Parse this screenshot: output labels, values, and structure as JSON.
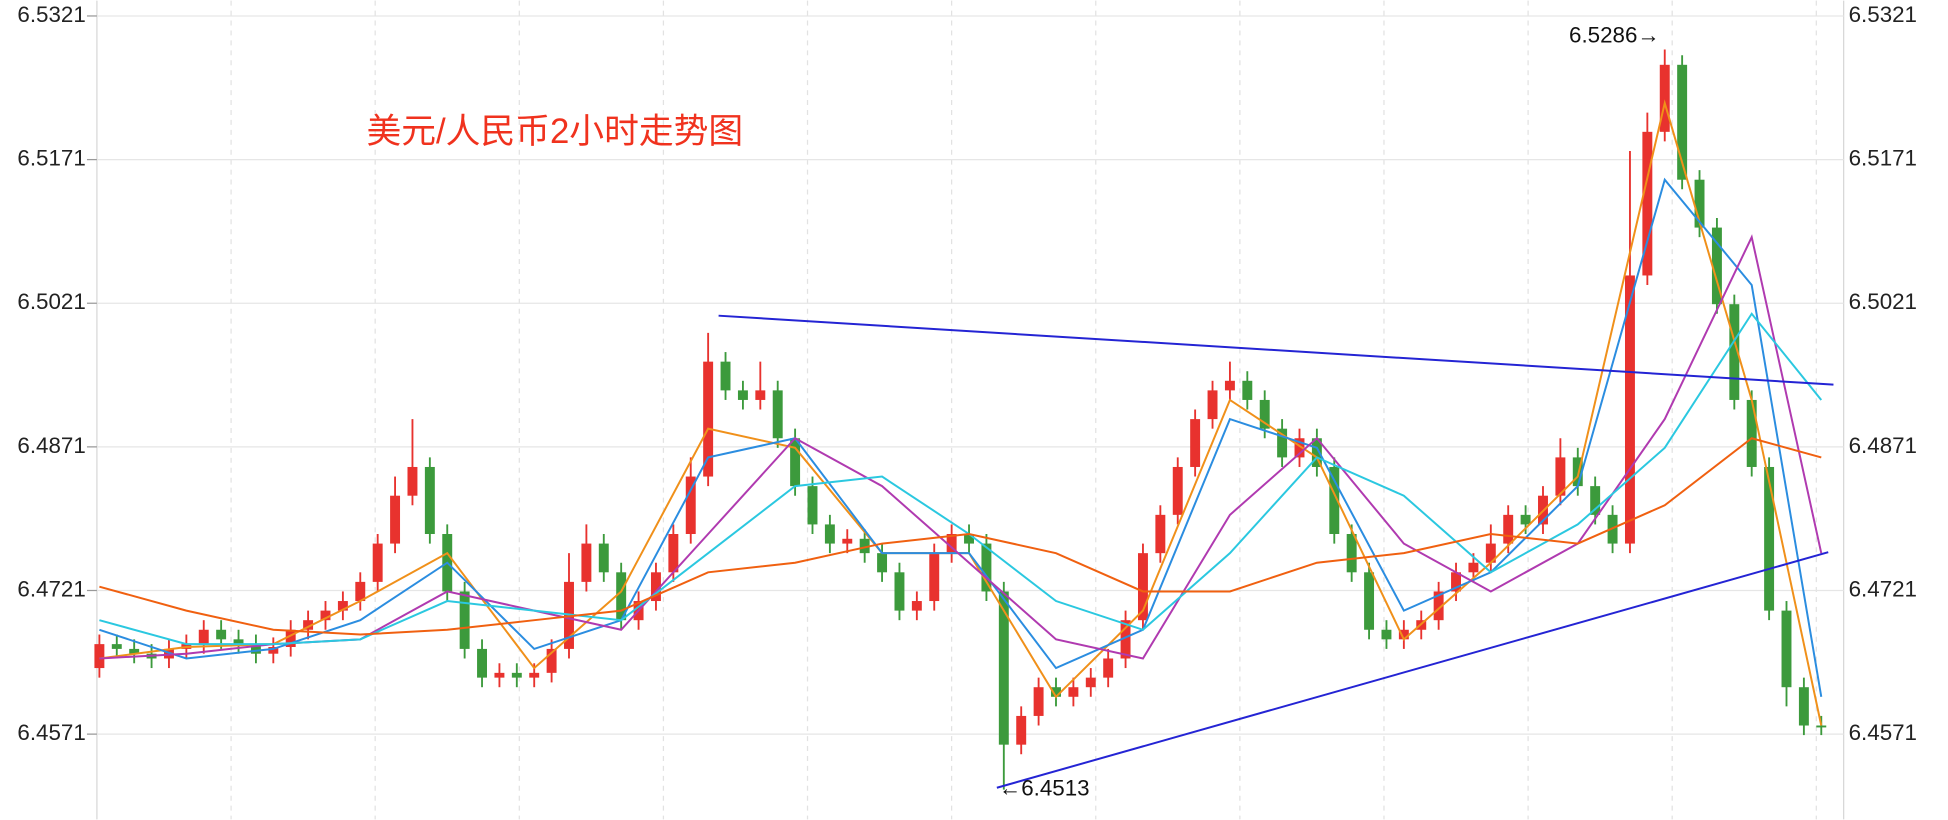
{
  "chart_data": {
    "type": "candlestick",
    "title": "美元/人民币2小时走势图",
    "annotations": [
      "6.5286→",
      "←6.4513"
    ],
    "ylim": [
      6.4482,
      6.5337
    ],
    "yticks": [
      6.4571,
      6.4721,
      6.4871,
      6.5021,
      6.5171,
      6.5321
    ],
    "grid": true,
    "up_color": "#e8322e",
    "down_color": "#3c9a3c",
    "open": [
      6.464,
      6.4665,
      6.466,
      6.4655,
      6.465,
      6.466,
      6.4665,
      6.468,
      6.467,
      6.4665,
      6.4655,
      6.4662,
      6.468,
      6.469,
      6.47,
      6.471,
      6.473,
      6.477,
      6.482,
      6.485,
      6.478,
      6.472,
      6.466,
      6.463,
      6.4635,
      6.463,
      6.4635,
      6.466,
      6.473,
      6.477,
      6.474,
      6.469,
      6.471,
      6.474,
      6.478,
      6.484,
      6.496,
      6.493,
      6.492,
      6.493,
      6.488,
      6.483,
      6.479,
      6.477,
      6.4775,
      6.476,
      6.474,
      6.47,
      6.471,
      6.476,
      6.478,
      6.477,
      6.472,
      6.456,
      6.459,
      6.462,
      6.461,
      6.462,
      6.463,
      6.465,
      6.469,
      6.476,
      6.48,
      6.485,
      6.49,
      6.493,
      6.494,
      6.492,
      6.489,
      6.486,
      6.488,
      6.485,
      6.478,
      6.474,
      6.468,
      6.467,
      6.468,
      6.469,
      6.472,
      6.474,
      6.475,
      6.477,
      6.48,
      6.479,
      6.482,
      6.486,
      6.483,
      6.48,
      6.477,
      6.505,
      6.52,
      6.527,
      6.515,
      6.51,
      6.502,
      6.492,
      6.485,
      6.47,
      6.462,
      6.458
    ],
    "high": [
      6.4675,
      6.4675,
      6.467,
      6.4665,
      6.467,
      6.4675,
      6.469,
      6.469,
      6.468,
      6.4675,
      6.4672,
      6.469,
      6.47,
      6.471,
      6.472,
      6.474,
      6.478,
      6.484,
      6.49,
      6.486,
      6.479,
      6.473,
      6.467,
      6.4645,
      6.4645,
      6.4645,
      6.467,
      6.476,
      6.479,
      6.478,
      6.475,
      6.472,
      6.475,
      6.479,
      6.486,
      6.499,
      6.497,
      6.494,
      6.496,
      6.494,
      6.489,
      6.484,
      6.48,
      6.4785,
      6.4785,
      6.477,
      6.475,
      6.472,
      6.477,
      6.479,
      6.479,
      6.478,
      6.473,
      6.46,
      6.463,
      6.463,
      6.463,
      6.464,
      6.466,
      6.47,
      6.477,
      6.481,
      6.486,
      6.491,
      6.494,
      6.496,
      6.495,
      6.493,
      6.49,
      6.489,
      6.489,
      6.486,
      6.479,
      6.475,
      6.469,
      6.469,
      6.47,
      6.473,
      6.475,
      6.476,
      6.479,
      6.481,
      6.481,
      6.483,
      6.488,
      6.487,
      6.484,
      6.481,
      6.518,
      6.522,
      6.5286,
      6.528,
      6.516,
      6.511,
      6.503,
      6.493,
      6.486,
      6.471,
      6.463,
      6.459
    ],
    "low": [
      6.463,
      6.465,
      6.4645,
      6.464,
      6.464,
      6.465,
      6.4655,
      6.466,
      6.4655,
      6.4645,
      6.4645,
      6.4652,
      6.467,
      6.468,
      6.469,
      6.47,
      6.472,
      6.476,
      6.481,
      6.477,
      6.471,
      6.465,
      6.462,
      6.462,
      6.462,
      6.462,
      6.4625,
      6.465,
      6.472,
      6.473,
      6.468,
      6.468,
      6.47,
      6.473,
      6.477,
      6.483,
      6.492,
      6.491,
      6.491,
      6.487,
      6.482,
      6.478,
      6.476,
      6.476,
      6.475,
      6.473,
      6.469,
      6.469,
      6.47,
      6.475,
      6.476,
      6.471,
      6.4513,
      6.455,
      6.458,
      6.46,
      6.46,
      6.461,
      6.462,
      6.464,
      6.468,
      6.475,
      6.479,
      6.484,
      6.489,
      6.492,
      6.491,
      6.488,
      6.485,
      6.485,
      6.484,
      6.477,
      6.473,
      6.467,
      6.466,
      6.466,
      6.467,
      6.468,
      6.471,
      6.473,
      6.474,
      6.476,
      6.478,
      6.478,
      6.481,
      6.482,
      6.479,
      6.476,
      6.476,
      6.504,
      6.519,
      6.514,
      6.509,
      6.501,
      6.491,
      6.484,
      6.469,
      6.46,
      6.457,
      6.457
    ],
    "close": [
      6.4665,
      6.466,
      6.4655,
      6.465,
      6.466,
      6.4665,
      6.468,
      6.467,
      6.4665,
      6.4655,
      6.4662,
      6.468,
      6.469,
      6.47,
      6.471,
      6.473,
      6.477,
      6.482,
      6.485,
      6.478,
      6.472,
      6.466,
      6.463,
      6.4635,
      6.463,
      6.4635,
      6.466,
      6.473,
      6.477,
      6.474,
      6.469,
      6.471,
      6.474,
      6.478,
      6.484,
      6.496,
      6.493,
      6.492,
      6.493,
      6.488,
      6.483,
      6.479,
      6.477,
      6.4775,
      6.476,
      6.474,
      6.47,
      6.471,
      6.476,
      6.478,
      6.477,
      6.472,
      6.456,
      6.459,
      6.462,
      6.461,
      6.462,
      6.463,
      6.465,
      6.469,
      6.476,
      6.48,
      6.485,
      6.49,
      6.493,
      6.494,
      6.492,
      6.489,
      6.486,
      6.488,
      6.485,
      6.478,
      6.474,
      6.468,
      6.467,
      6.468,
      6.469,
      6.472,
      6.474,
      6.475,
      6.477,
      6.48,
      6.479,
      6.482,
      6.486,
      6.483,
      6.48,
      6.477,
      6.505,
      6.52,
      6.527,
      6.515,
      6.51,
      6.502,
      6.492,
      6.485,
      6.47,
      6.462,
      6.458,
      6.4578
    ],
    "series": [
      {
        "color": "#f0901a",
        "x": [
          0,
          5,
          10,
          15,
          20,
          25,
          30,
          35,
          40,
          45,
          50,
          55,
          60,
          65,
          70,
          75,
          80,
          85,
          90,
          95,
          99
        ],
        "values": [
          6.465,
          6.4662,
          6.4665,
          6.471,
          6.476,
          6.464,
          6.472,
          6.489,
          6.487,
          6.476,
          6.476,
          6.461,
          6.47,
          6.492,
          6.486,
          6.467,
          6.475,
          6.484,
          6.523,
          6.492,
          6.458
        ]
      },
      {
        "color": "#2b8de0",
        "x": [
          0,
          5,
          10,
          15,
          20,
          25,
          30,
          35,
          40,
          45,
          50,
          55,
          60,
          65,
          70,
          75,
          80,
          85,
          90,
          95,
          99
        ],
        "values": [
          6.468,
          6.465,
          6.466,
          6.469,
          6.475,
          6.466,
          6.469,
          6.486,
          6.488,
          6.476,
          6.476,
          6.464,
          6.468,
          6.49,
          6.487,
          6.47,
          6.474,
          6.483,
          6.515,
          6.504,
          6.461
        ]
      },
      {
        "color": "#b03ab0",
        "x": [
          0,
          5,
          10,
          15,
          20,
          25,
          30,
          35,
          40,
          45,
          50,
          55,
          60,
          65,
          70,
          75,
          80,
          85,
          90,
          95,
          99
        ],
        "values": [
          6.465,
          6.4655,
          6.4665,
          6.467,
          6.472,
          6.47,
          6.468,
          6.478,
          6.488,
          6.483,
          6.475,
          6.467,
          6.465,
          6.48,
          6.488,
          6.477,
          6.472,
          6.477,
          6.49,
          6.509,
          6.476
        ]
      },
      {
        "color": "#2bc8e0",
        "x": [
          0,
          5,
          10,
          15,
          20,
          25,
          30,
          35,
          40,
          45,
          50,
          55,
          60,
          65,
          70,
          75,
          80,
          85,
          90,
          95,
          99
        ],
        "values": [
          6.469,
          6.4665,
          6.4665,
          6.467,
          6.471,
          6.47,
          6.469,
          6.476,
          6.483,
          6.484,
          6.478,
          6.471,
          6.468,
          6.476,
          6.486,
          6.482,
          6.474,
          6.479,
          6.487,
          6.501,
          6.492
        ]
      },
      {
        "color": "#f06010",
        "x": [
          0,
          5,
          10,
          15,
          20,
          25,
          30,
          35,
          40,
          45,
          50,
          55,
          60,
          65,
          70,
          75,
          80,
          85,
          90,
          95,
          99
        ],
        "values": [
          6.4725,
          6.47,
          6.468,
          6.4675,
          6.468,
          6.469,
          6.47,
          6.474,
          6.475,
          6.477,
          6.478,
          6.476,
          6.472,
          6.472,
          6.475,
          6.476,
          6.478,
          6.477,
          6.481,
          6.488,
          6.486
        ]
      }
    ],
    "trend_lines": [
      {
        "color": "#2424d4",
        "x": [
          35.6,
          99.7
        ],
        "values": [
          6.5008,
          6.4936
        ]
      },
      {
        "color": "#2424d4",
        "x": [
          51.6,
          99.4
        ],
        "values": [
          6.4515,
          6.4761
        ]
      }
    ]
  }
}
